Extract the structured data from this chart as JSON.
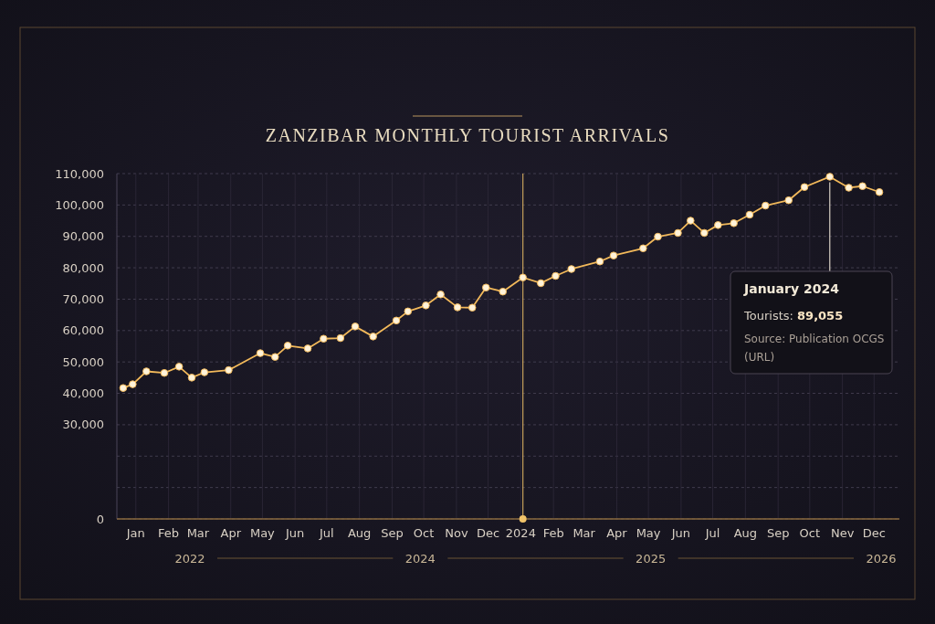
{
  "chart_data": {
    "type": "line",
    "title": "ZANZIBAR MONTHLY TOURIST ARRIVALS",
    "x": [
      "2022-12-20",
      "2022-12-29",
      "2023-01-11",
      "2023-01-28",
      "2023-02-11",
      "2023-02-23",
      "2023-03-07",
      "2023-03-30",
      "2023-04-29",
      "2023-05-13",
      "2023-05-25",
      "2023-06-13",
      "2023-06-28",
      "2023-07-14",
      "2023-07-28",
      "2023-08-14",
      "2023-09-05",
      "2023-09-16",
      "2023-10-03",
      "2023-10-17",
      "2023-11-02",
      "2023-11-16",
      "2023-11-29",
      "2023-12-15",
      "2024-01-03",
      "2024-01-20",
      "2024-02-03",
      "2024-02-18",
      "2024-03-16",
      "2024-03-29",
      "2024-04-26",
      "2024-05-10",
      "2024-05-29",
      "2024-06-10",
      "2024-06-23",
      "2024-07-06",
      "2024-07-21",
      "2024-08-05",
      "2024-08-20",
      "2024-09-11",
      "2024-09-26",
      "2024-10-20",
      "2024-11-07",
      "2024-11-20",
      "2024-12-06"
    ],
    "series": [
      {
        "color": "#f2b95a",
        "values": [
          41700,
          42900,
          47000,
          46500,
          48500,
          45000,
          46700,
          47400,
          52800,
          51600,
          55200,
          54300,
          57400,
          57600,
          61300,
          58100,
          63200,
          66100,
          68000,
          71500,
          67400,
          67300,
          73700,
          72400,
          76900,
          75100,
          77400,
          79600,
          82000,
          83900,
          86200,
          89900,
          91100,
          95000,
          91100,
          93600,
          94200,
          96900,
          99800,
          101500,
          105700,
          109000,
          105500,
          106000,
          104100
        ]
      }
    ],
    "xlim": [
      "2022-12-14",
      "2024-12-25"
    ],
    "xticks": [
      {
        "value": "2023-01-01",
        "label": "Jan"
      },
      {
        "value": "2023-02-01",
        "label": "Feb"
      },
      {
        "value": "2023-03-01",
        "label": "Mar"
      },
      {
        "value": "2023-04-01",
        "label": "Apr"
      },
      {
        "value": "2023-05-01",
        "label": "May"
      },
      {
        "value": "2023-06-01",
        "label": "Jun"
      },
      {
        "value": "2023-07-01",
        "label": "Jul"
      },
      {
        "value": "2023-08-01",
        "label": "Aug"
      },
      {
        "value": "2023-09-01",
        "label": "Sep"
      },
      {
        "value": "2023-10-01",
        "label": "Oct"
      },
      {
        "value": "2023-11-01",
        "label": "Nov"
      },
      {
        "value": "2023-12-01",
        "label": "Dec"
      },
      {
        "value": "2024-01-01",
        "label": "2024"
      },
      {
        "value": "2024-02-01",
        "label": "Feb"
      },
      {
        "value": "2024-03-01",
        "label": "Mar"
      },
      {
        "value": "2024-04-01",
        "label": "Apr"
      },
      {
        "value": "2024-05-01",
        "label": "May"
      },
      {
        "value": "2024-06-01",
        "label": "Jun"
      },
      {
        "value": "2024-07-01",
        "label": "Jul"
      },
      {
        "value": "2024-08-01",
        "label": "Aug"
      },
      {
        "value": "2024-09-01",
        "label": "Sep"
      },
      {
        "value": "2024-10-01",
        "label": "Oct"
      },
      {
        "value": "2024-11-01",
        "label": "Nev"
      },
      {
        "value": "2024-12-01",
        "label": "Dec"
      }
    ],
    "ylim": [
      0,
      110000
    ],
    "yticks": [
      {
        "value": 0,
        "label": "0"
      },
      {
        "value": 10000,
        "label": null
      },
      {
        "value": 20000,
        "label": null
      },
      {
        "value": 30000,
        "label": "30,000"
      },
      {
        "value": 40000,
        "label": "40,000"
      },
      {
        "value": 50000,
        "label": "50,000"
      },
      {
        "value": 60000,
        "label": "60,000"
      },
      {
        "value": 70000,
        "label": "70,000"
      },
      {
        "value": 80000,
        "label": "80,000"
      },
      {
        "value": 90000,
        "label": "90,000"
      },
      {
        "value": 100000,
        "label": "100,000"
      },
      {
        "value": 110000,
        "label": "110,000"
      }
    ],
    "grid": true,
    "marker": "circle",
    "line_style": "solid",
    "ref_lines": [
      {
        "axis": "x",
        "value": "2024-01-03",
        "color": "#f2c46a"
      }
    ],
    "annotations": [
      {
        "text": "January 2024\nTourists: 89,055\nSource: Publication OCGS\n(URL)",
        "x": "2024-10-20",
        "y": 109000
      },
      "2022",
      "2024",
      "2025",
      "2026"
    ]
  }
}
